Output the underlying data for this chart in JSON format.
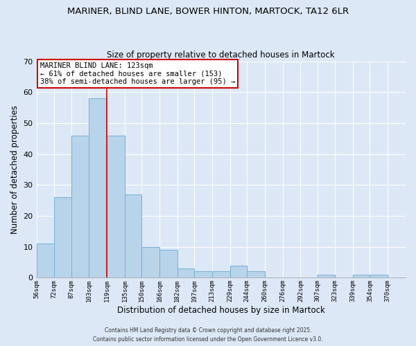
{
  "title": "MARINER, BLIND LANE, BOWER HINTON, MARTOCK, TA12 6LR",
  "subtitle": "Size of property relative to detached houses in Martock",
  "xlabel": "Distribution of detached houses by size in Martock",
  "ylabel": "Number of detached properties",
  "bar_left_edges": [
    56,
    72,
    87,
    103,
    119,
    135,
    150,
    166,
    182,
    197,
    213,
    229,
    244,
    260,
    276,
    292,
    307,
    323,
    339,
    354
  ],
  "bar_widths": [
    16,
    15,
    16,
    16,
    16,
    15,
    16,
    16,
    15,
    16,
    16,
    15,
    16,
    16,
    16,
    15,
    16,
    16,
    15,
    16
  ],
  "bar_heights": [
    11,
    26,
    46,
    58,
    46,
    27,
    10,
    9,
    3,
    2,
    2,
    4,
    2,
    0,
    0,
    0,
    1,
    0,
    1,
    1
  ],
  "bar_color": "#b8d4ea",
  "bar_edgecolor": "#7aafd4",
  "tick_labels": [
    "56sqm",
    "72sqm",
    "87sqm",
    "103sqm",
    "119sqm",
    "135sqm",
    "150sqm",
    "166sqm",
    "182sqm",
    "197sqm",
    "213sqm",
    "229sqm",
    "244sqm",
    "260sqm",
    "276sqm",
    "292sqm",
    "307sqm",
    "323sqm",
    "339sqm",
    "354sqm",
    "370sqm"
  ],
  "tick_positions": [
    56,
    72,
    87,
    103,
    119,
    135,
    150,
    166,
    182,
    197,
    213,
    229,
    244,
    260,
    276,
    292,
    307,
    323,
    339,
    354,
    370
  ],
  "vline_x": 119,
  "vline_color": "#cc0000",
  "ylim": [
    0,
    70
  ],
  "yticks": [
    0,
    10,
    20,
    30,
    40,
    50,
    60,
    70
  ],
  "xlim_left": 56,
  "xlim_right": 386,
  "annotation_title": "MARINER BLIND LANE: 123sqm",
  "annotation_line2": "← 61% of detached houses are smaller (153)",
  "annotation_line3": "38% of semi-detached houses are larger (95) →",
  "annotation_box_color": "#ffffff",
  "annotation_box_edgecolor": "#cc0000",
  "background_color": "#dce8f5",
  "grid_color": "#ffffff",
  "footer1": "Contains HM Land Registry data © Crown copyright and database right 2025.",
  "footer2": "Contains public sector information licensed under the Open Government Licence v3.0."
}
